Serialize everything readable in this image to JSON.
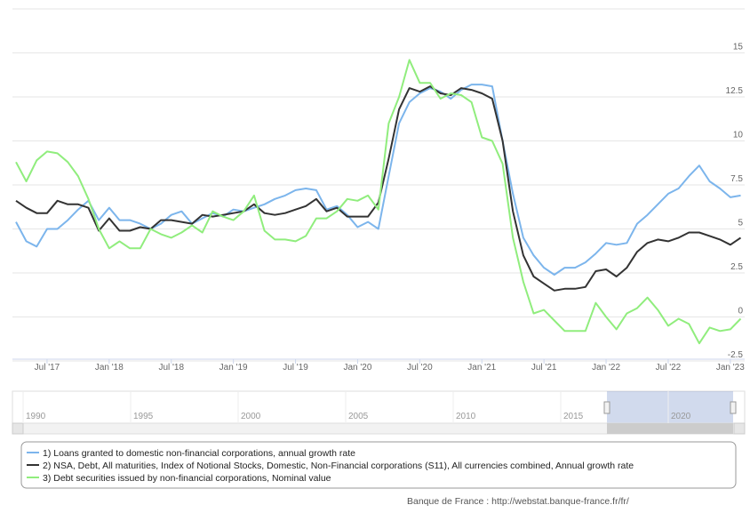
{
  "chart_data": {
    "type": "line",
    "categories": [
      null,
      null,
      null,
      "Jul '17",
      null,
      null,
      null,
      null,
      null,
      "Jan '18",
      null,
      null,
      null,
      null,
      null,
      "Jul '18",
      null,
      null,
      null,
      null,
      null,
      "Jan '19",
      null,
      null,
      null,
      null,
      null,
      "Jul '19",
      null,
      null,
      null,
      null,
      null,
      "Jan '20",
      null,
      null,
      null,
      null,
      null,
      "Jul '20",
      null,
      null,
      null,
      null,
      null,
      "Jan '21",
      null,
      null,
      null,
      null,
      null,
      "Jul '21",
      null,
      null,
      null,
      null,
      null,
      "Jan '22",
      null,
      null,
      null,
      null,
      null,
      "Jul '22",
      null,
      null,
      null,
      null,
      null,
      "Jan '23",
      null
    ],
    "series": [
      {
        "name": "1) Loans granted to domestic non-financial corporations, annual growth rate",
        "color": "#7cb5ec",
        "values": [
          5.4,
          4.3,
          4.0,
          5.0,
          5.0,
          5.5,
          6.1,
          6.6,
          5.5,
          6.2,
          5.5,
          5.5,
          5.3,
          5.0,
          5.3,
          5.8,
          6.0,
          5.3,
          5.6,
          5.9,
          5.7,
          6.1,
          6.0,
          6.2,
          6.4,
          6.7,
          6.9,
          7.2,
          7.3,
          7.2,
          6.1,
          6.3,
          5.8,
          5.1,
          5.4,
          5.0,
          8.0,
          11.0,
          12.2,
          12.7,
          13.0,
          12.8,
          12.4,
          12.9,
          13.2,
          13.2,
          13.1,
          10.0,
          7.0,
          4.5,
          3.5,
          2.8,
          2.4,
          2.8,
          2.8,
          3.1,
          3.6,
          4.2,
          4.1,
          4.2,
          5.3,
          5.8,
          6.4,
          7.0,
          7.3,
          8.0,
          8.6,
          7.7,
          7.3,
          6.8,
          6.9
        ]
      },
      {
        "name": "2) NSA, Debt, All maturities, Index of Notional Stocks, Domestic, Non-Financial corporations (S11), All currencies combined, Annual growth rate",
        "color": "#333333",
        "values": [
          6.6,
          6.2,
          5.9,
          5.9,
          6.6,
          6.4,
          6.4,
          6.2,
          4.9,
          5.6,
          4.9,
          4.9,
          5.1,
          5.0,
          5.5,
          5.5,
          5.4,
          5.3,
          5.8,
          5.7,
          5.8,
          5.9,
          6.0,
          6.4,
          5.9,
          5.8,
          5.9,
          6.1,
          6.3,
          6.7,
          6.0,
          6.2,
          5.7,
          5.7,
          5.7,
          6.5,
          9.0,
          11.8,
          13.0,
          12.8,
          13.1,
          12.7,
          12.6,
          13.0,
          12.9,
          12.7,
          12.4,
          10.0,
          6.0,
          3.5,
          2.3,
          1.9,
          1.5,
          1.6,
          1.6,
          1.7,
          2.6,
          2.7,
          2.3,
          2.8,
          3.7,
          4.2,
          4.4,
          4.3,
          4.5,
          4.8,
          4.8,
          4.6,
          4.4,
          4.1,
          4.5
        ]
      },
      {
        "name": "3) Debt securities issued by non-financial corporations, Nominal value",
        "color": "#90ed7d",
        "values": [
          8.8,
          7.7,
          8.9,
          9.4,
          9.3,
          8.8,
          8.0,
          6.7,
          5.0,
          3.9,
          4.3,
          3.9,
          3.9,
          5.0,
          4.7,
          4.5,
          4.8,
          5.2,
          4.8,
          6.0,
          5.7,
          5.5,
          6.0,
          6.9,
          4.9,
          4.4,
          4.4,
          4.3,
          4.6,
          5.6,
          5.6,
          6.0,
          6.7,
          6.6,
          6.9,
          6.1,
          11.0,
          12.5,
          14.6,
          13.3,
          13.3,
          12.4,
          12.7,
          12.6,
          12.2,
          10.2,
          10.0,
          8.7,
          4.5,
          2.0,
          0.2,
          0.4,
          -0.2,
          -0.8,
          -0.8,
          -0.8,
          0.8,
          0.0,
          -0.7,
          0.2,
          0.5,
          1.1,
          0.4,
          -0.5,
          -0.1,
          -0.4,
          -1.5,
          -0.6,
          -0.8,
          -0.7,
          -0.1
        ]
      }
    ],
    "ylim": [
      -2.5,
      17.5
    ],
    "yticks": [
      -2.5,
      0,
      2.5,
      5,
      7.5,
      10,
      12.5,
      15
    ],
    "grid": true,
    "navigator_labels": [
      "1990",
      "1995",
      "2000",
      "2005",
      "2010",
      "2015",
      "2020"
    ],
    "source": "Banque de France : http://webstat.banque-france.fr/fr/"
  }
}
